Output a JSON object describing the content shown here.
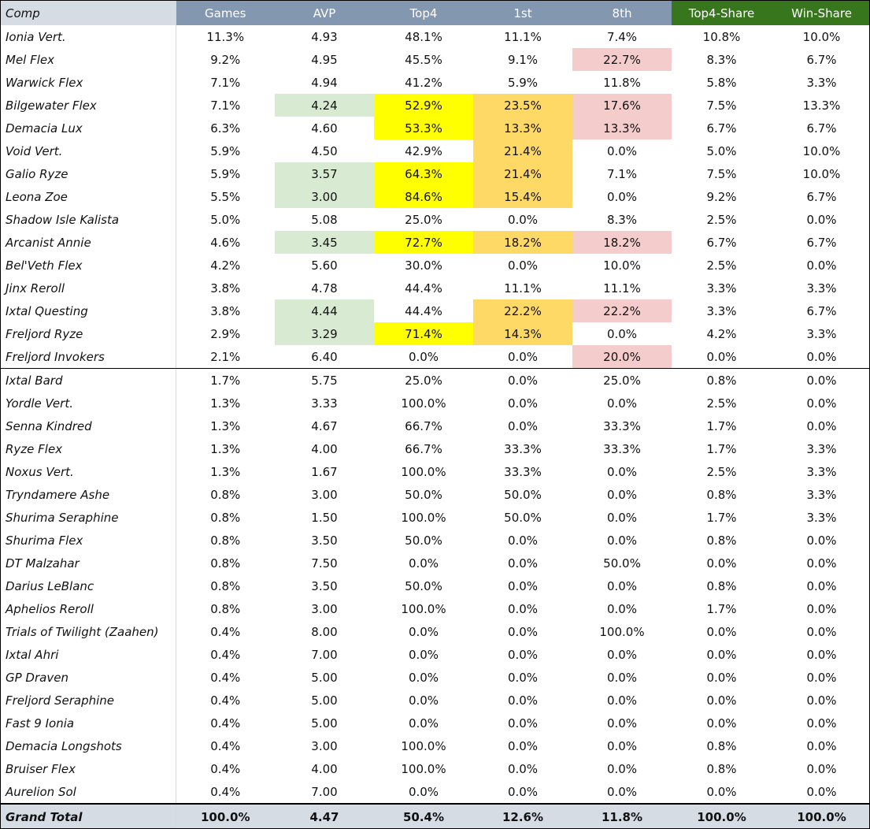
{
  "headers": [
    "Comp",
    "Games",
    "AVP",
    "Top4",
    "1st",
    "8th",
    "Top4-Share",
    "Win-Share"
  ],
  "rows": [
    {
      "comp": "Ionia Vert.",
      "games": "11.3%",
      "avp": "4.93",
      "top4": "48.1%",
      "first": "11.1%",
      "eighth": "7.4%",
      "top4_share": "10.8%",
      "win_share": "10.0%",
      "hl": {}
    },
    {
      "comp": "Mel Flex",
      "games": "9.2%",
      "avp": "4.95",
      "top4": "45.5%",
      "first": "9.1%",
      "eighth": "22.7%",
      "top4_share": "8.3%",
      "win_share": "6.7%",
      "hl": {
        "eighth": "p"
      }
    },
    {
      "comp": "Warwick Flex",
      "games": "7.1%",
      "avp": "4.94",
      "top4": "41.2%",
      "first": "5.9%",
      "eighth": "11.8%",
      "top4_share": "5.8%",
      "win_share": "3.3%",
      "hl": {}
    },
    {
      "comp": "Bilgewater Flex",
      "games": "7.1%",
      "avp": "4.24",
      "top4": "52.9%",
      "first": "23.5%",
      "eighth": "17.6%",
      "top4_share": "7.5%",
      "win_share": "13.3%",
      "hl": {
        "avp": "g",
        "top4": "y",
        "first": "o",
        "eighth": "p"
      }
    },
    {
      "comp": "Demacia Lux",
      "games": "6.3%",
      "avp": "4.60",
      "top4": "53.3%",
      "first": "13.3%",
      "eighth": "13.3%",
      "top4_share": "6.7%",
      "win_share": "6.7%",
      "hl": {
        "top4": "y",
        "first": "o",
        "eighth": "p"
      }
    },
    {
      "comp": "Void Vert.",
      "games": "5.9%",
      "avp": "4.50",
      "top4": "42.9%",
      "first": "21.4%",
      "eighth": "0.0%",
      "top4_share": "5.0%",
      "win_share": "10.0%",
      "hl": {
        "first": "o"
      }
    },
    {
      "comp": "Galio Ryze",
      "games": "5.9%",
      "avp": "3.57",
      "top4": "64.3%",
      "first": "21.4%",
      "eighth": "7.1%",
      "top4_share": "7.5%",
      "win_share": "10.0%",
      "hl": {
        "avp": "g",
        "top4": "y",
        "first": "o"
      }
    },
    {
      "comp": "Leona Zoe",
      "games": "5.5%",
      "avp": "3.00",
      "top4": "84.6%",
      "first": "15.4%",
      "eighth": "0.0%",
      "top4_share": "9.2%",
      "win_share": "6.7%",
      "hl": {
        "avp": "g",
        "top4": "y",
        "first": "o"
      }
    },
    {
      "comp": "Shadow Isle Kalista",
      "games": "5.0%",
      "avp": "5.08",
      "top4": "25.0%",
      "first": "0.0%",
      "eighth": "8.3%",
      "top4_share": "2.5%",
      "win_share": "0.0%",
      "hl": {}
    },
    {
      "comp": "Arcanist Annie",
      "games": "4.6%",
      "avp": "3.45",
      "top4": "72.7%",
      "first": "18.2%",
      "eighth": "18.2%",
      "top4_share": "6.7%",
      "win_share": "6.7%",
      "hl": {
        "avp": "g",
        "top4": "y",
        "first": "o",
        "eighth": "p"
      }
    },
    {
      "comp": "Bel'Veth Flex",
      "games": "4.2%",
      "avp": "5.60",
      "top4": "30.0%",
      "first": "0.0%",
      "eighth": "10.0%",
      "top4_share": "2.5%",
      "win_share": "0.0%",
      "hl": {}
    },
    {
      "comp": "Jinx Reroll",
      "games": "3.8%",
      "avp": "4.78",
      "top4": "44.4%",
      "first": "11.1%",
      "eighth": "11.1%",
      "top4_share": "3.3%",
      "win_share": "3.3%",
      "hl": {}
    },
    {
      "comp": "Ixtal Questing",
      "games": "3.8%",
      "avp": "4.44",
      "top4": "44.4%",
      "first": "22.2%",
      "eighth": "22.2%",
      "top4_share": "3.3%",
      "win_share": "6.7%",
      "hl": {
        "avp": "g",
        "first": "o",
        "eighth": "p"
      }
    },
    {
      "comp": "Freljord Ryze",
      "games": "2.9%",
      "avp": "3.29",
      "top4": "71.4%",
      "first": "14.3%",
      "eighth": "0.0%",
      "top4_share": "4.2%",
      "win_share": "3.3%",
      "hl": {
        "avp": "g",
        "top4": "y",
        "first": "o"
      }
    },
    {
      "comp": "Freljord Invokers",
      "games": "2.1%",
      "avp": "6.40",
      "top4": "0.0%",
      "first": "0.0%",
      "eighth": "20.0%",
      "top4_share": "0.0%",
      "win_share": "0.0%",
      "hl": {
        "eighth": "p"
      }
    },
    {
      "comp": "Ixtal Bard",
      "games": "1.7%",
      "avp": "5.75",
      "top4": "25.0%",
      "first": "0.0%",
      "eighth": "25.0%",
      "top4_share": "0.8%",
      "win_share": "0.0%",
      "hl": {}
    },
    {
      "comp": "Yordle Vert.",
      "games": "1.3%",
      "avp": "3.33",
      "top4": "100.0%",
      "first": "0.0%",
      "eighth": "0.0%",
      "top4_share": "2.5%",
      "win_share": "0.0%",
      "hl": {}
    },
    {
      "comp": "Senna Kindred",
      "games": "1.3%",
      "avp": "4.67",
      "top4": "66.7%",
      "first": "0.0%",
      "eighth": "33.3%",
      "top4_share": "1.7%",
      "win_share": "0.0%",
      "hl": {}
    },
    {
      "comp": "Ryze Flex",
      "games": "1.3%",
      "avp": "4.00",
      "top4": "66.7%",
      "first": "33.3%",
      "eighth": "33.3%",
      "top4_share": "1.7%",
      "win_share": "3.3%",
      "hl": {}
    },
    {
      "comp": "Noxus Vert.",
      "games": "1.3%",
      "avp": "1.67",
      "top4": "100.0%",
      "first": "33.3%",
      "eighth": "0.0%",
      "top4_share": "2.5%",
      "win_share": "3.3%",
      "hl": {}
    },
    {
      "comp": "Tryndamere Ashe",
      "games": "0.8%",
      "avp": "3.00",
      "top4": "50.0%",
      "first": "50.0%",
      "eighth": "0.0%",
      "top4_share": "0.8%",
      "win_share": "3.3%",
      "hl": {}
    },
    {
      "comp": "Shurima Seraphine",
      "games": "0.8%",
      "avp": "1.50",
      "top4": "100.0%",
      "first": "50.0%",
      "eighth": "0.0%",
      "top4_share": "1.7%",
      "win_share": "3.3%",
      "hl": {}
    },
    {
      "comp": "Shurima Flex",
      "games": "0.8%",
      "avp": "3.50",
      "top4": "50.0%",
      "first": "0.0%",
      "eighth": "0.0%",
      "top4_share": "0.8%",
      "win_share": "0.0%",
      "hl": {}
    },
    {
      "comp": "DT Malzahar",
      "games": "0.8%",
      "avp": "7.50",
      "top4": "0.0%",
      "first": "0.0%",
      "eighth": "50.0%",
      "top4_share": "0.0%",
      "win_share": "0.0%",
      "hl": {}
    },
    {
      "comp": "Darius LeBlanc",
      "games": "0.8%",
      "avp": "3.50",
      "top4": "50.0%",
      "first": "0.0%",
      "eighth": "0.0%",
      "top4_share": "0.8%",
      "win_share": "0.0%",
      "hl": {}
    },
    {
      "comp": "Aphelios Reroll",
      "games": "0.8%",
      "avp": "3.00",
      "top4": "100.0%",
      "first": "0.0%",
      "eighth": "0.0%",
      "top4_share": "1.7%",
      "win_share": "0.0%",
      "hl": {}
    },
    {
      "comp": "Trials of Twilight (Zaahen)",
      "games": "0.4%",
      "avp": "8.00",
      "top4": "0.0%",
      "first": "0.0%",
      "eighth": "100.0%",
      "top4_share": "0.0%",
      "win_share": "0.0%",
      "hl": {}
    },
    {
      "comp": "Ixtal Ahri",
      "games": "0.4%",
      "avp": "7.00",
      "top4": "0.0%",
      "first": "0.0%",
      "eighth": "0.0%",
      "top4_share": "0.0%",
      "win_share": "0.0%",
      "hl": {}
    },
    {
      "comp": "GP Draven",
      "games": "0.4%",
      "avp": "5.00",
      "top4": "0.0%",
      "first": "0.0%",
      "eighth": "0.0%",
      "top4_share": "0.0%",
      "win_share": "0.0%",
      "hl": {}
    },
    {
      "comp": "Freljord Seraphine",
      "games": "0.4%",
      "avp": "5.00",
      "top4": "0.0%",
      "first": "0.0%",
      "eighth": "0.0%",
      "top4_share": "0.0%",
      "win_share": "0.0%",
      "hl": {}
    },
    {
      "comp": "Fast 9 Ionia",
      "games": "0.4%",
      "avp": "5.00",
      "top4": "0.0%",
      "first": "0.0%",
      "eighth": "0.0%",
      "top4_share": "0.0%",
      "win_share": "0.0%",
      "hl": {}
    },
    {
      "comp": "Demacia Longshots",
      "games": "0.4%",
      "avp": "3.00",
      "top4": "100.0%",
      "first": "0.0%",
      "eighth": "0.0%",
      "top4_share": "0.8%",
      "win_share": "0.0%",
      "hl": {}
    },
    {
      "comp": "Bruiser Flex",
      "games": "0.4%",
      "avp": "4.00",
      "top4": "100.0%",
      "first": "0.0%",
      "eighth": "0.0%",
      "top4_share": "0.8%",
      "win_share": "0.0%",
      "hl": {}
    },
    {
      "comp": "Aurelion Sol",
      "games": "0.4%",
      "avp": "7.00",
      "top4": "0.0%",
      "first": "0.0%",
      "eighth": "0.0%",
      "top4_share": "0.0%",
      "win_share": "0.0%",
      "hl": {}
    }
  ],
  "split_after_index": 14,
  "total": {
    "comp": "Grand Total",
    "games": "100.0%",
    "avp": "4.47",
    "top4": "50.4%",
    "first": "12.6%",
    "eighth": "11.8%",
    "top4_share": "100.0%",
    "win_share": "100.0%"
  },
  "colors": {
    "header_blue": "#8497b0",
    "header_green": "#38761d",
    "header_comp": "#d6dce4",
    "avp_highlight": "#d9ead3",
    "top4_highlight": "#ffff00",
    "first_highlight": "#ffd966",
    "eighth_highlight": "#f4cccc"
  }
}
